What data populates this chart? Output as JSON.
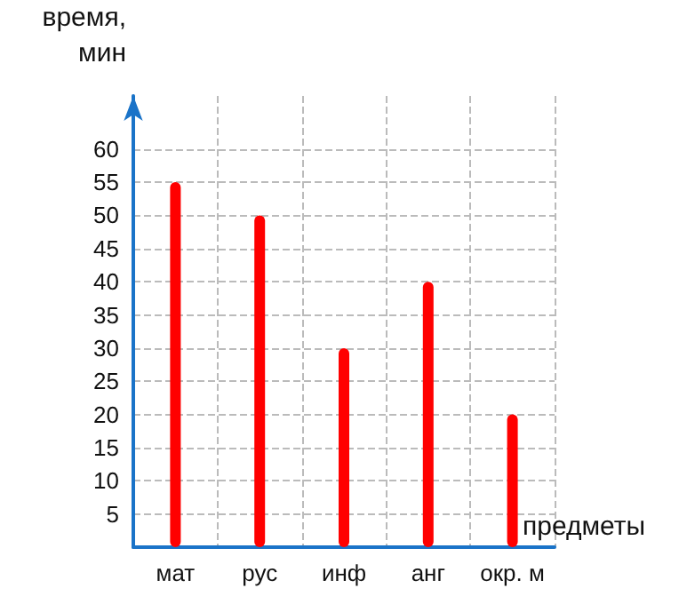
{
  "chart_data": {
    "type": "bar",
    "xlabel": "предметы",
    "ylabel": "время,\nмин",
    "categories": [
      "мат",
      "рус",
      "инф",
      "анг",
      "окр. м"
    ],
    "values": [
      55,
      50,
      30,
      40,
      20
    ],
    "color": "#ff0000",
    "ylim": [
      0,
      68
    ],
    "yticks": [
      {
        "value": 0,
        "label": null
      },
      5,
      10,
      15,
      20,
      25,
      30,
      35,
      40,
      45,
      50,
      55,
      60
    ],
    "grid": true
  }
}
